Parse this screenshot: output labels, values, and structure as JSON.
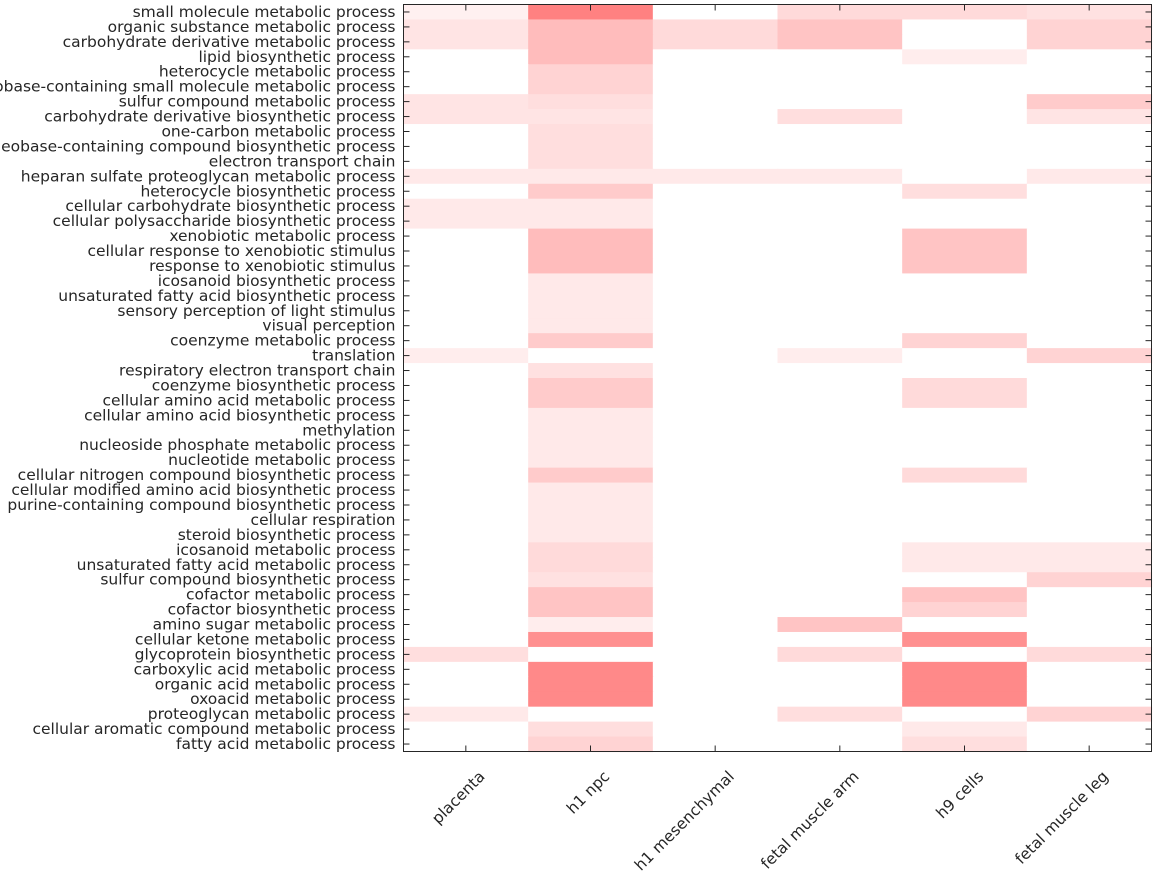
{
  "chart_data": {
    "type": "heatmap",
    "title": "",
    "xlabel": "",
    "ylabel": "",
    "columns": [
      "placenta",
      "h1 npc",
      "h1 mesenchymal",
      "fetal muscle arm",
      "h9 cells",
      "fetal muscle leg"
    ],
    "rows": [
      "small molecule metabolic process",
      "organic substance metabolic process",
      "carbohydrate derivative metabolic process",
      "lipid biosynthetic process",
      "heterocycle metabolic process",
      "nucleobase-containing small molecule metabolic process",
      "sulfur compound metabolic process",
      "carbohydrate derivative biosynthetic process",
      "one-carbon metabolic process",
      "nucleobase-containing compound biosynthetic process",
      "electron transport chain",
      "heparan sulfate proteoglycan metabolic process",
      "heterocycle biosynthetic process",
      "cellular carbohydrate biosynthetic process",
      "cellular polysaccharide biosynthetic process",
      "xenobiotic metabolic process",
      "cellular response to xenobiotic stimulus",
      "response to xenobiotic stimulus",
      "icosanoid biosynthetic process",
      "unsaturated fatty acid biosynthetic process",
      "sensory perception of light stimulus",
      "visual perception",
      "coenzyme metabolic process",
      "translation",
      "respiratory electron transport chain",
      "coenzyme biosynthetic process",
      "cellular amino acid metabolic process",
      "cellular amino acid biosynthetic process",
      "methylation",
      "nucleoside phosphate metabolic process",
      "nucleotide metabolic process",
      "cellular nitrogen compound biosynthetic process",
      "cellular modified amino acid biosynthetic process",
      "purine-containing compound biosynthetic process",
      "cellular respiration",
      "steroid biosynthetic process",
      "icosanoid metabolic process",
      "unsaturated fatty acid metabolic process",
      "sulfur compound biosynthetic process",
      "cofactor metabolic process",
      "cofactor biosynthetic process",
      "amino sugar metabolic process",
      "cellular ketone metabolic process",
      "glycoprotein biosynthetic process",
      "carboxylic acid metabolic process",
      "organic acid metabolic process",
      "oxoacid metabolic process",
      "proteoglycan metabolic process",
      "cellular aromatic compound metabolic process",
      "fatty acid metabolic process"
    ],
    "values": [
      [
        0.1,
        0.85,
        0.0,
        0.25,
        0.25,
        0.2
      ],
      [
        0.18,
        0.45,
        0.25,
        0.4,
        0.0,
        0.3
      ],
      [
        0.18,
        0.45,
        0.25,
        0.4,
        0.0,
        0.3
      ],
      [
        0.0,
        0.45,
        0.0,
        0.0,
        0.12,
        0.0
      ],
      [
        0.0,
        0.3,
        0.0,
        0.0,
        0.0,
        0.0
      ],
      [
        0.0,
        0.3,
        0.0,
        0.0,
        0.0,
        0.0
      ],
      [
        0.18,
        0.22,
        0.0,
        0.0,
        0.0,
        0.35
      ],
      [
        0.18,
        0.18,
        0.0,
        0.22,
        0.0,
        0.18
      ],
      [
        0.0,
        0.22,
        0.0,
        0.0,
        0.0,
        0.0
      ],
      [
        0.0,
        0.22,
        0.0,
        0.0,
        0.0,
        0.0
      ],
      [
        0.0,
        0.22,
        0.0,
        0.0,
        0.0,
        0.0
      ],
      [
        0.15,
        0.15,
        0.15,
        0.15,
        0.0,
        0.15
      ],
      [
        0.0,
        0.35,
        0.0,
        0.0,
        0.22,
        0.0
      ],
      [
        0.15,
        0.15,
        0.0,
        0.0,
        0.0,
        0.0
      ],
      [
        0.15,
        0.15,
        0.0,
        0.0,
        0.0,
        0.0
      ],
      [
        0.0,
        0.45,
        0.0,
        0.0,
        0.4,
        0.0
      ],
      [
        0.0,
        0.45,
        0.0,
        0.0,
        0.4,
        0.0
      ],
      [
        0.0,
        0.45,
        0.0,
        0.0,
        0.4,
        0.0
      ],
      [
        0.0,
        0.15,
        0.0,
        0.0,
        0.0,
        0.0
      ],
      [
        0.0,
        0.15,
        0.0,
        0.0,
        0.0,
        0.0
      ],
      [
        0.0,
        0.15,
        0.0,
        0.0,
        0.0,
        0.0
      ],
      [
        0.0,
        0.15,
        0.0,
        0.0,
        0.0,
        0.0
      ],
      [
        0.0,
        0.35,
        0.0,
        0.0,
        0.3,
        0.0
      ],
      [
        0.12,
        0.0,
        0.0,
        0.12,
        0.0,
        0.3
      ],
      [
        0.0,
        0.2,
        0.0,
        0.0,
        0.0,
        0.0
      ],
      [
        0.0,
        0.35,
        0.0,
        0.0,
        0.25,
        0.0
      ],
      [
        0.0,
        0.35,
        0.0,
        0.0,
        0.25,
        0.0
      ],
      [
        0.0,
        0.15,
        0.0,
        0.0,
        0.0,
        0.0
      ],
      [
        0.0,
        0.15,
        0.0,
        0.0,
        0.0,
        0.0
      ],
      [
        0.0,
        0.15,
        0.0,
        0.0,
        0.0,
        0.0
      ],
      [
        0.0,
        0.15,
        0.0,
        0.0,
        0.0,
        0.0
      ],
      [
        0.0,
        0.35,
        0.0,
        0.0,
        0.25,
        0.0
      ],
      [
        0.0,
        0.15,
        0.0,
        0.0,
        0.0,
        0.0
      ],
      [
        0.0,
        0.15,
        0.0,
        0.0,
        0.0,
        0.0
      ],
      [
        0.0,
        0.15,
        0.0,
        0.0,
        0.0,
        0.0
      ],
      [
        0.0,
        0.15,
        0.0,
        0.0,
        0.0,
        0.0
      ],
      [
        0.0,
        0.25,
        0.0,
        0.0,
        0.15,
        0.15
      ],
      [
        0.0,
        0.25,
        0.0,
        0.0,
        0.15,
        0.15
      ],
      [
        0.0,
        0.2,
        0.0,
        0.0,
        0.0,
        0.3
      ],
      [
        0.0,
        0.4,
        0.0,
        0.0,
        0.4,
        0.0
      ],
      [
        0.0,
        0.4,
        0.0,
        0.0,
        0.3,
        0.0
      ],
      [
        0.0,
        0.12,
        0.0,
        0.4,
        0.0,
        0.0
      ],
      [
        0.0,
        0.75,
        0.0,
        0.0,
        0.75,
        0.0
      ],
      [
        0.22,
        0.0,
        0.0,
        0.25,
        0.0,
        0.25
      ],
      [
        0.0,
        0.8,
        0.0,
        0.0,
        0.8,
        0.0
      ],
      [
        0.0,
        0.8,
        0.0,
        0.0,
        0.8,
        0.0
      ],
      [
        0.0,
        0.8,
        0.0,
        0.0,
        0.8,
        0.0
      ],
      [
        0.15,
        0.0,
        0.0,
        0.22,
        0.0,
        0.3
      ],
      [
        0.0,
        0.22,
        0.0,
        0.0,
        0.15,
        0.0
      ],
      [
        0.0,
        0.3,
        0.0,
        0.0,
        0.22,
        0.0
      ]
    ],
    "value_range": [
      0,
      1
    ],
    "colormap": {
      "low": "#ffffff",
      "high": "#ff6b6b"
    },
    "grid": false,
    "legend": "none"
  }
}
